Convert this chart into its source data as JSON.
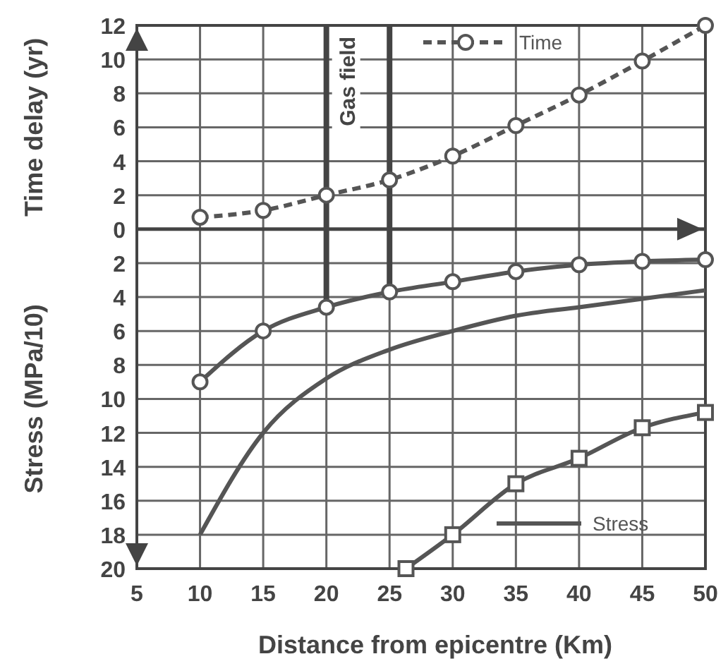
{
  "chart_data": {
    "type": "line",
    "xlabel": "Distance from epicentre (Km)",
    "ylabel": "Time delay (yr)",
    "y2label": "Stress (MPa/10)",
    "xlim": [
      5,
      50
    ],
    "xticks": [
      5,
      10,
      15,
      20,
      25,
      30,
      35,
      40,
      45,
      50
    ],
    "ylim": [
      -20,
      12
    ],
    "yticks": [
      {
        "value": -20,
        "label": "20"
      },
      {
        "value": -18,
        "label": "18"
      },
      {
        "value": -16,
        "label": "16"
      },
      {
        "value": -14,
        "label": "14"
      },
      {
        "value": -12,
        "label": "12"
      },
      {
        "value": -10,
        "label": "10"
      },
      {
        "value": -8,
        "label": "8"
      },
      {
        "value": -6,
        "label": "6"
      },
      {
        "value": -4,
        "label": "4"
      },
      {
        "value": -2,
        "label": "2"
      },
      0,
      2,
      4,
      6,
      8,
      10,
      12
    ],
    "grid": true,
    "legend": "right",
    "ref_lines": [
      {
        "axis": "x",
        "value": 20,
        "label": "Gas field"
      },
      {
        "axis": "x",
        "value": 25,
        "label": null
      }
    ],
    "series": [
      {
        "name": "Time",
        "color": "#555555",
        "marker": "circle",
        "line_style": "dashed",
        "x": [
          10,
          15,
          20,
          25,
          30,
          35,
          40,
          45,
          50
        ],
        "values": [
          0.7,
          1.1,
          2.0,
          2.9,
          4.3,
          6.1,
          7.9,
          9.9,
          12
        ]
      },
      {
        "color": "#555555",
        "marker": "circle",
        "line_style": "solid",
        "x": [
          10,
          15,
          20,
          25,
          30,
          35,
          40,
          45,
          50
        ],
        "values": [
          -9,
          -6,
          -4.6,
          -3.7,
          -3.1,
          -2.5,
          -2.1,
          -1.9,
          -1.8
        ]
      },
      {
        "name": "Stress",
        "color": "#555555",
        "marker": "none",
        "line_style": "solid",
        "x": [
          10,
          15,
          20,
          25,
          30,
          35,
          40,
          45,
          50
        ],
        "values": [
          -18,
          -12,
          -8.8,
          -7.1,
          -6,
          -5.1,
          -4.6,
          -4.1,
          -3.6
        ]
      },
      {
        "color": "#555555",
        "marker": "square",
        "line_style": "solid",
        "x": [
          26.3,
          30,
          35,
          40,
          45,
          50
        ],
        "values": [
          -20,
          -18,
          -15,
          -13.5,
          -11.7,
          -10.8
        ]
      }
    ]
  }
}
